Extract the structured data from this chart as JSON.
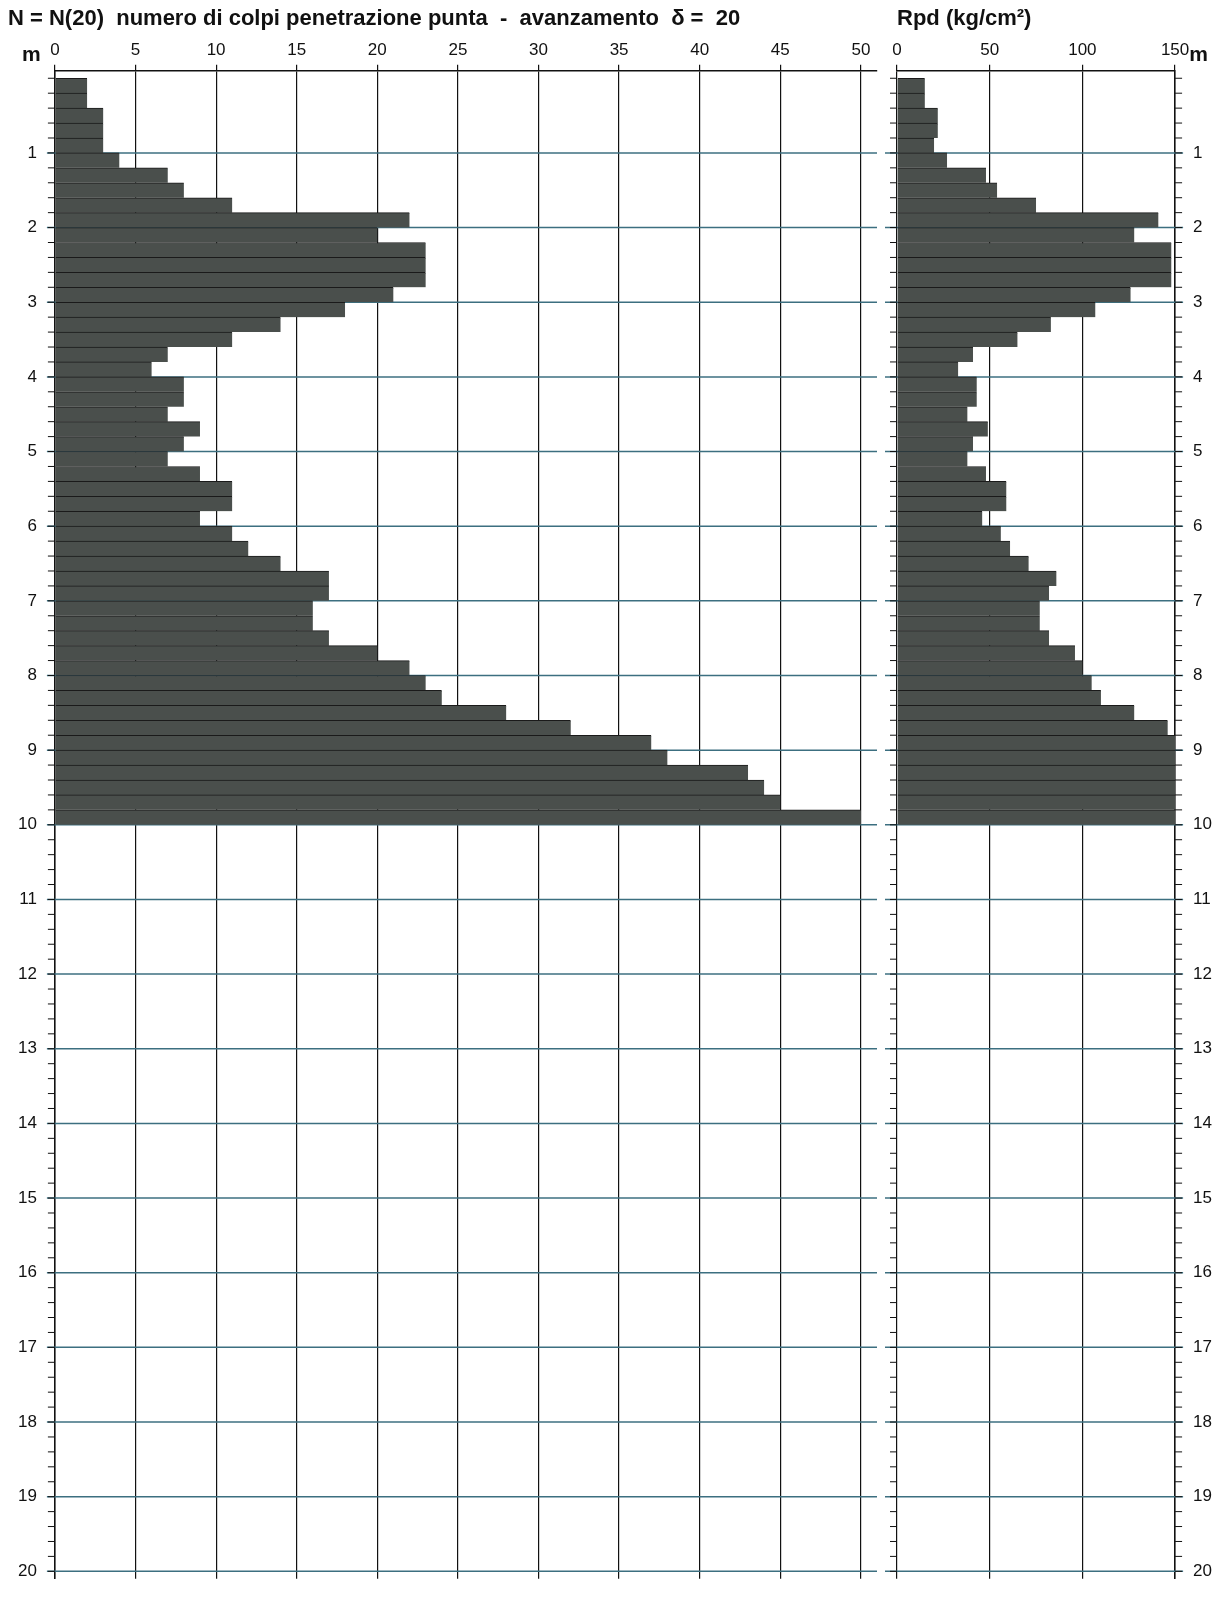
{
  "chart_data": [
    {
      "type": "bar",
      "orientation": "horizontal",
      "title": "N = N(20)  numero di colpi penetrazione punta  -  avanzamento  δ =  20",
      "ylabel": "m",
      "color": "#4a4f4c",
      "grid": true,
      "x": [
        0.1,
        0.3,
        0.5,
        0.7,
        0.9,
        1.1,
        1.3,
        1.5,
        1.7,
        1.9,
        2.1,
        2.3,
        2.5,
        2.7,
        2.9,
        3.1,
        3.3,
        3.5,
        3.7,
        3.9,
        4.1,
        4.3,
        4.5,
        4.7,
        4.9,
        5.1,
        5.3,
        5.5,
        5.7,
        5.9,
        6.1,
        6.3,
        6.5,
        6.7,
        6.9,
        7.1,
        7.3,
        7.5,
        7.7,
        7.9,
        8.1,
        8.3,
        8.5,
        8.7,
        8.9,
        9.1,
        9.3,
        9.5,
        9.7,
        9.9
      ],
      "values": [
        2,
        2,
        3,
        3,
        3,
        4,
        7,
        8,
        11,
        22,
        20,
        23,
        23,
        23,
        21,
        18,
        14,
        11,
        7,
        6,
        8,
        8,
        7,
        9,
        8,
        7,
        9,
        11,
        11,
        9,
        11,
        12,
        14,
        17,
        17,
        16,
        16,
        17,
        20,
        22,
        23,
        24,
        28,
        32,
        37,
        38,
        43,
        44,
        45,
        50
      ],
      "xlim": [
        0,
        51
      ],
      "xticks": [
        0,
        5,
        10,
        15,
        20,
        25,
        30,
        35,
        40,
        45,
        50
      ],
      "ylim": [
        20,
        0
      ],
      "yticks": [
        {
          "value": 0,
          "label": null
        },
        {
          "value": 0.2,
          "label": null
        },
        {
          "value": 0.4,
          "label": null
        },
        {
          "value": 0.6,
          "label": null
        },
        {
          "value": 0.8,
          "label": null
        },
        1,
        {
          "value": 1.2,
          "label": null
        },
        {
          "value": 1.4,
          "label": null
        },
        {
          "value": 1.6,
          "label": null
        },
        {
          "value": 1.8,
          "label": null
        },
        2,
        {
          "value": 2.2,
          "label": null
        },
        {
          "value": 2.4,
          "label": null
        },
        {
          "value": 2.6,
          "label": null
        },
        {
          "value": 2.8,
          "label": null
        },
        3,
        {
          "value": 3.2,
          "label": null
        },
        {
          "value": 3.4,
          "label": null
        },
        {
          "value": 3.6,
          "label": null
        },
        {
          "value": 3.8,
          "label": null
        },
        4,
        {
          "value": 4.2,
          "label": null
        },
        {
          "value": 4.4,
          "label": null
        },
        {
          "value": 4.6,
          "label": null
        },
        {
          "value": 4.8,
          "label": null
        },
        5,
        {
          "value": 5.2,
          "label": null
        },
        {
          "value": 5.4,
          "label": null
        },
        {
          "value": 5.6,
          "label": null
        },
        {
          "value": 5.8,
          "label": null
        },
        6,
        {
          "value": 6.2,
          "label": null
        },
        {
          "value": 6.4,
          "label": null
        },
        {
          "value": 6.6,
          "label": null
        },
        {
          "value": 6.8,
          "label": null
        },
        7,
        {
          "value": 7.2,
          "label": null
        },
        {
          "value": 7.4,
          "label": null
        },
        {
          "value": 7.6,
          "label": null
        },
        {
          "value": 7.8,
          "label": null
        },
        8,
        {
          "value": 8.2,
          "label": null
        },
        {
          "value": 8.4,
          "label": null
        },
        {
          "value": 8.6,
          "label": null
        },
        {
          "value": 8.8,
          "label": null
        },
        9,
        {
          "value": 9.2,
          "label": null
        },
        {
          "value": 9.4,
          "label": null
        },
        {
          "value": 9.6,
          "label": null
        },
        {
          "value": 9.8,
          "label": null
        },
        10,
        {
          "value": 10.2,
          "label": null
        },
        {
          "value": 10.4,
          "label": null
        },
        {
          "value": 10.6,
          "label": null
        },
        {
          "value": 10.8,
          "label": null
        },
        11,
        {
          "value": 11.2,
          "label": null
        },
        {
          "value": 11.4,
          "label": null
        },
        {
          "value": 11.6,
          "label": null
        },
        {
          "value": 11.8,
          "label": null
        },
        12,
        {
          "value": 12.2,
          "label": null
        },
        {
          "value": 12.4,
          "label": null
        },
        {
          "value": 12.6,
          "label": null
        },
        {
          "value": 12.8,
          "label": null
        },
        13,
        {
          "value": 13.2,
          "label": null
        },
        {
          "value": 13.4,
          "label": null
        },
        {
          "value": 13.6,
          "label": null
        },
        {
          "value": 13.8,
          "label": null
        },
        14,
        {
          "value": 14.2,
          "label": null
        },
        {
          "value": 14.4,
          "label": null
        },
        {
          "value": 14.6,
          "label": null
        },
        {
          "value": 14.8,
          "label": null
        },
        15,
        {
          "value": 15.2,
          "label": null
        },
        {
          "value": 15.4,
          "label": null
        },
        {
          "value": 15.6,
          "label": null
        },
        {
          "value": 15.8,
          "label": null
        },
        16,
        {
          "value": 16.2,
          "label": null
        },
        {
          "value": 16.4,
          "label": null
        },
        {
          "value": 16.6,
          "label": null
        },
        {
          "value": 16.8,
          "label": null
        },
        17,
        {
          "value": 17.2,
          "label": null
        },
        {
          "value": 17.4,
          "label": null
        },
        {
          "value": 17.6,
          "label": null
        },
        {
          "value": 17.8,
          "label": null
        },
        18,
        {
          "value": 18.2,
          "label": null
        },
        {
          "value": 18.4,
          "label": null
        },
        {
          "value": 18.6,
          "label": null
        },
        {
          "value": 18.8,
          "label": null
        },
        19,
        {
          "value": 19.2,
          "label": null
        },
        {
          "value": 19.4,
          "label": null
        },
        {
          "value": 19.6,
          "label": null
        },
        {
          "value": 19.8,
          "label": null
        },
        20
      ]
    },
    {
      "type": "bar",
      "orientation": "horizontal",
      "title": "Rpd (kg/cm²)",
      "ylabel": "m",
      "color": "#4a4f4c",
      "grid": true,
      "x": [
        0.1,
        0.3,
        0.5,
        0.7,
        0.9,
        1.1,
        1.3,
        1.5,
        1.7,
        1.9,
        2.1,
        2.3,
        2.5,
        2.7,
        2.9,
        3.1,
        3.3,
        3.5,
        3.7,
        3.9,
        4.1,
        4.3,
        4.5,
        4.7,
        4.9,
        5.1,
        5.3,
        5.5,
        5.7,
        5.9,
        6.1,
        6.3,
        6.5,
        6.7,
        6.9,
        7.1,
        7.3,
        7.5,
        7.7,
        7.9,
        8.1,
        8.3,
        8.5,
        8.7,
        8.9,
        9.1,
        9.3,
        9.5,
        9.7,
        9.9
      ],
      "values": [
        15,
        15,
        22,
        22,
        20,
        27,
        48,
        54,
        75,
        141,
        128,
        148,
        148,
        148,
        126,
        107,
        83,
        65,
        41,
        33,
        43,
        43,
        38,
        49,
        41,
        38,
        48,
        59,
        59,
        46,
        56,
        61,
        71,
        86,
        82,
        77,
        77,
        82,
        96,
        100,
        105,
        110,
        128,
        146,
        150,
        150,
        150,
        150,
        150,
        150
      ],
      "xlim": [
        0,
        150
      ],
      "xticks": [
        0,
        50,
        100,
        150
      ],
      "ylim": [
        20,
        0
      ],
      "yticks": [
        {
          "value": 0,
          "label": null
        },
        {
          "value": 0.2,
          "label": null
        },
        {
          "value": 0.4,
          "label": null
        },
        {
          "value": 0.6,
          "label": null
        },
        {
          "value": 0.8,
          "label": null
        },
        1,
        {
          "value": 1.2,
          "label": null
        },
        {
          "value": 1.4,
          "label": null
        },
        {
          "value": 1.6,
          "label": null
        },
        {
          "value": 1.8,
          "label": null
        },
        2,
        {
          "value": 2.2,
          "label": null
        },
        {
          "value": 2.4,
          "label": null
        },
        {
          "value": 2.6,
          "label": null
        },
        {
          "value": 2.8,
          "label": null
        },
        3,
        {
          "value": 3.2,
          "label": null
        },
        {
          "value": 3.4,
          "label": null
        },
        {
          "value": 3.6,
          "label": null
        },
        {
          "value": 3.8,
          "label": null
        },
        4,
        {
          "value": 4.2,
          "label": null
        },
        {
          "value": 4.4,
          "label": null
        },
        {
          "value": 4.6,
          "label": null
        },
        {
          "value": 4.8,
          "label": null
        },
        5,
        {
          "value": 5.2,
          "label": null
        },
        {
          "value": 5.4,
          "label": null
        },
        {
          "value": 5.6,
          "label": null
        },
        {
          "value": 5.8,
          "label": null
        },
        6,
        {
          "value": 6.2,
          "label": null
        },
        {
          "value": 6.4,
          "label": null
        },
        {
          "value": 6.6,
          "label": null
        },
        {
          "value": 6.8,
          "label": null
        },
        7,
        {
          "value": 7.2,
          "label": null
        },
        {
          "value": 7.4,
          "label": null
        },
        {
          "value": 7.6,
          "label": null
        },
        {
          "value": 7.8,
          "label": null
        },
        8,
        {
          "value": 8.2,
          "label": null
        },
        {
          "value": 8.4,
          "label": null
        },
        {
          "value": 8.6,
          "label": null
        },
        {
          "value": 8.8,
          "label": null
        },
        9,
        {
          "value": 9.2,
          "label": null
        },
        {
          "value": 9.4,
          "label": null
        },
        {
          "value": 9.6,
          "label": null
        },
        {
          "value": 9.8,
          "label": null
        },
        10,
        {
          "value": 10.2,
          "label": null
        },
        {
          "value": 10.4,
          "label": null
        },
        {
          "value": 10.6,
          "label": null
        },
        {
          "value": 10.8,
          "label": null
        },
        11,
        {
          "value": 11.2,
          "label": null
        },
        {
          "value": 11.4,
          "label": null
        },
        {
          "value": 11.6,
          "label": null
        },
        {
          "value": 11.8,
          "label": null
        },
        12,
        {
          "value": 12.2,
          "label": null
        },
        {
          "value": 12.4,
          "label": null
        },
        {
          "value": 12.6,
          "label": null
        },
        {
          "value": 12.8,
          "label": null
        },
        13,
        {
          "value": 13.2,
          "label": null
        },
        {
          "value": 13.4,
          "label": null
        },
        {
          "value": 13.6,
          "label": null
        },
        {
          "value": 13.8,
          "label": null
        },
        14,
        {
          "value": 14.2,
          "label": null
        },
        {
          "value": 14.4,
          "label": null
        },
        {
          "value": 14.6,
          "label": null
        },
        {
          "value": 14.8,
          "label": null
        },
        15,
        {
          "value": 15.2,
          "label": null
        },
        {
          "value": 15.4,
          "label": null
        },
        {
          "value": 15.6,
          "label": null
        },
        {
          "value": 15.8,
          "label": null
        },
        16,
        {
          "value": 16.2,
          "label": null
        },
        {
          "value": 16.4,
          "label": null
        },
        {
          "value": 16.6,
          "label": null
        },
        {
          "value": 16.8,
          "label": null
        },
        17,
        {
          "value": 17.2,
          "label": null
        },
        {
          "value": 17.4,
          "label": null
        },
        {
          "value": 17.6,
          "label": null
        },
        {
          "value": 17.8,
          "label": null
        },
        18,
        {
          "value": 18.2,
          "label": null
        },
        {
          "value": 18.4,
          "label": null
        },
        {
          "value": 18.6,
          "label": null
        },
        {
          "value": 18.8,
          "label": null
        },
        19,
        {
          "value": 19.2,
          "label": null
        },
        {
          "value": 19.4,
          "label": null
        },
        {
          "value": 19.6,
          "label": null
        },
        {
          "value": 19.8,
          "label": null
        },
        20
      ]
    }
  ]
}
